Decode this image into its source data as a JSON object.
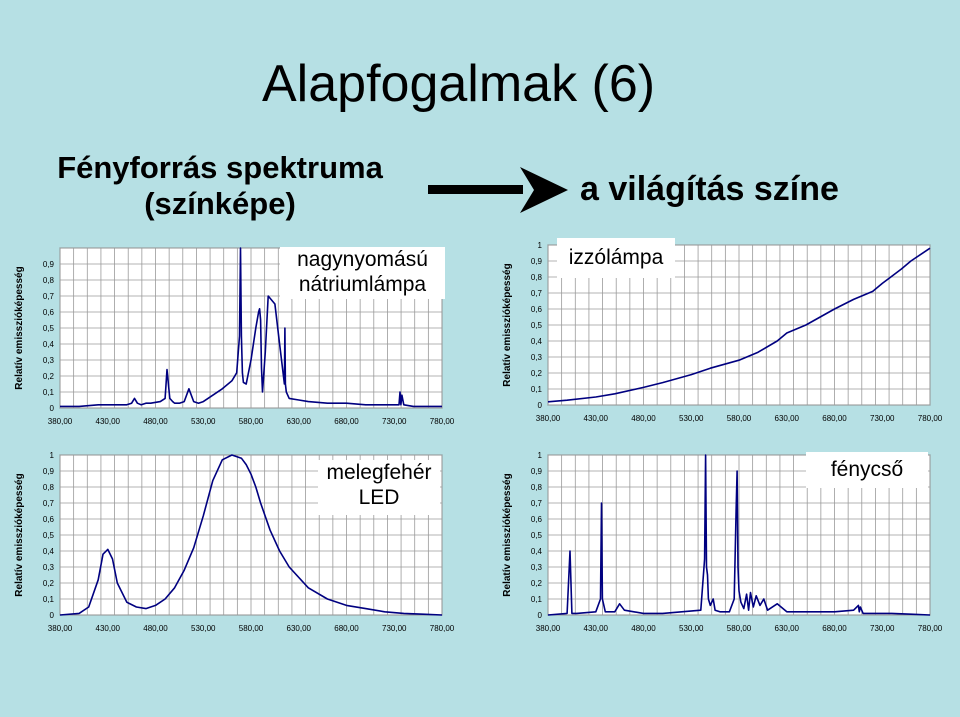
{
  "title": "Alapfogalmak (6)",
  "subtitle_line1": "Fényforrás spektruma",
  "subtitle_line2": "(színképe)",
  "result_text": "a világítás színe",
  "colors": {
    "background": "#b6e0e4",
    "plot_bg": "#ffffff",
    "grid": "#9a9a9a",
    "line": "#000080"
  },
  "chart_data": [
    {
      "type": "line",
      "label_text": [
        "nagynyomású",
        "nátriumlámpa"
      ],
      "ylabel": "Relatív emisszióképesség",
      "xlabel": "",
      "x_ticks": [
        "380,00",
        "430,00",
        "480,00",
        "530,00",
        "580,00",
        "630,00",
        "680,00",
        "730,00",
        "780,00"
      ],
      "y_ticks": [
        "0",
        "0,1",
        "0,2",
        "0,3",
        "0,4",
        "0,5",
        "0,6",
        "0,7",
        "0,8",
        "0,9",
        ""
      ],
      "xlim": [
        380,
        780
      ],
      "ylim": [
        0,
        1
      ],
      "grid": true,
      "series": [
        {
          "x": [
            380,
            400,
            420,
            440,
            450,
            455,
            458,
            461,
            465,
            470,
            475,
            485,
            490,
            492,
            495,
            498,
            500,
            505,
            510,
            515,
            520,
            525,
            530,
            540,
            550,
            560,
            565,
            568,
            569,
            570,
            571,
            572,
            575,
            580,
            585,
            588,
            589,
            590,
            591,
            592,
            595,
            598,
            605,
            610,
            615,
            615.5,
            616,
            617,
            620,
            630,
            640,
            660,
            680,
            700,
            720,
            735,
            736,
            737,
            738,
            740,
            750,
            760,
            770,
            780
          ],
          "y": [
            0.01,
            0.01,
            0.02,
            0.02,
            0.02,
            0.03,
            0.06,
            0.03,
            0.02,
            0.03,
            0.03,
            0.04,
            0.06,
            0.24,
            0.06,
            0.04,
            0.03,
            0.03,
            0.04,
            0.12,
            0.04,
            0.03,
            0.04,
            0.08,
            0.12,
            0.17,
            0.22,
            0.45,
            1.0,
            0.45,
            0.22,
            0.16,
            0.15,
            0.3,
            0.5,
            0.6,
            0.62,
            0.55,
            0.25,
            0.1,
            0.35,
            0.7,
            0.65,
            0.4,
            0.15,
            0.5,
            0.15,
            0.1,
            0.06,
            0.05,
            0.04,
            0.03,
            0.03,
            0.02,
            0.02,
            0.02,
            0.1,
            0.02,
            0.08,
            0.02,
            0.01,
            0.01,
            0.01,
            0.01
          ]
        }
      ]
    },
    {
      "type": "line",
      "label_text": [
        "izzólámpa"
      ],
      "ylabel": "Relatív emisszióképesség",
      "xlabel": "",
      "x_ticks": [
        "380,00",
        "430,00",
        "480,00",
        "530,00",
        "580,00",
        "630,00",
        "680,00",
        "730,00",
        "780,00"
      ],
      "y_ticks": [
        "0",
        "0,1",
        "0,2",
        "0,3",
        "0,4",
        "0,5",
        "0,6",
        "0,7",
        "0,8",
        "0,9",
        "1"
      ],
      "xlim": [
        380,
        780
      ],
      "ylim": [
        0,
        1
      ],
      "grid": true,
      "series": [
        {
          "x": [
            380,
            400,
            430,
            450,
            480,
            500,
            530,
            550,
            580,
            600,
            620,
            630,
            650,
            680,
            700,
            720,
            730,
            750,
            760,
            780
          ],
          "y": [
            0.02,
            0.03,
            0.05,
            0.07,
            0.11,
            0.14,
            0.19,
            0.23,
            0.28,
            0.33,
            0.4,
            0.45,
            0.5,
            0.6,
            0.66,
            0.71,
            0.76,
            0.85,
            0.9,
            0.98
          ]
        }
      ]
    },
    {
      "type": "line",
      "label_text": [
        "melegfehér",
        "LED"
      ],
      "ylabel": "Relatív emisszióképesség",
      "xlabel": "",
      "x_ticks": [
        "380,00",
        "430,00",
        "480,00",
        "530,00",
        "580,00",
        "630,00",
        "680,00",
        "730,00",
        "780,00"
      ],
      "y_ticks": [
        "0",
        "0,1",
        "0,2",
        "0,3",
        "0,4",
        "0,5",
        "0,6",
        "0,7",
        "0,8",
        "0,9",
        "1"
      ],
      "xlim": [
        380,
        780
      ],
      "ylim": [
        0,
        1
      ],
      "grid": true,
      "series": [
        {
          "x": [
            380,
            400,
            410,
            420,
            425,
            430,
            435,
            440,
            450,
            460,
            470,
            480,
            490,
            500,
            510,
            520,
            530,
            540,
            550,
            560,
            570,
            575,
            580,
            585,
            590,
            600,
            610,
            620,
            640,
            660,
            680,
            700,
            720,
            740,
            760,
            780
          ],
          "y": [
            0.0,
            0.01,
            0.05,
            0.22,
            0.38,
            0.41,
            0.35,
            0.2,
            0.08,
            0.05,
            0.04,
            0.06,
            0.1,
            0.17,
            0.28,
            0.42,
            0.62,
            0.84,
            0.97,
            1.0,
            0.98,
            0.94,
            0.88,
            0.8,
            0.7,
            0.53,
            0.4,
            0.3,
            0.17,
            0.1,
            0.06,
            0.04,
            0.02,
            0.01,
            0.005,
            0.0
          ]
        }
      ]
    },
    {
      "type": "line",
      "label_text": [
        "fénycső"
      ],
      "ylabel": "Relatív emisszióképesség",
      "xlabel": "",
      "x_ticks": [
        "380,00",
        "430,00",
        "480,00",
        "530,00",
        "580,00",
        "630,00",
        "680,00",
        "730,00",
        "780,00"
      ],
      "y_ticks": [
        "0",
        "0,1",
        "0,2",
        "0,3",
        "0,4",
        "0,5",
        "0,6",
        "0,7",
        "0,8",
        "0,9",
        "1"
      ],
      "xlim": [
        380,
        780
      ],
      "ylim": [
        0,
        1
      ],
      "grid": true,
      "series": [
        {
          "x": [
            380,
            400,
            403,
            405,
            407,
            410,
            430,
            435,
            436,
            437,
            440,
            450,
            455,
            460,
            470,
            480,
            500,
            520,
            540,
            544,
            545,
            546,
            547,
            548,
            550,
            553,
            555,
            560,
            570,
            575,
            577,
            578,
            579,
            580,
            582,
            585,
            588,
            590,
            592,
            595,
            598,
            602,
            606,
            610,
            620,
            630,
            640,
            660,
            680,
            700,
            705,
            706,
            707,
            710,
            720,
            740,
            760,
            780
          ],
          "y": [
            0.0,
            0.01,
            0.4,
            0.01,
            0.01,
            0.01,
            0.02,
            0.1,
            0.7,
            0.1,
            0.02,
            0.02,
            0.07,
            0.03,
            0.02,
            0.01,
            0.01,
            0.02,
            0.03,
            0.35,
            1.0,
            0.3,
            0.25,
            0.1,
            0.06,
            0.1,
            0.03,
            0.02,
            0.02,
            0.1,
            0.65,
            0.9,
            0.3,
            0.15,
            0.08,
            0.04,
            0.13,
            0.03,
            0.14,
            0.05,
            0.12,
            0.06,
            0.1,
            0.03,
            0.07,
            0.02,
            0.02,
            0.02,
            0.02,
            0.03,
            0.06,
            0.02,
            0.05,
            0.01,
            0.01,
            0.01,
            0.005,
            0.0
          ]
        }
      ]
    }
  ]
}
